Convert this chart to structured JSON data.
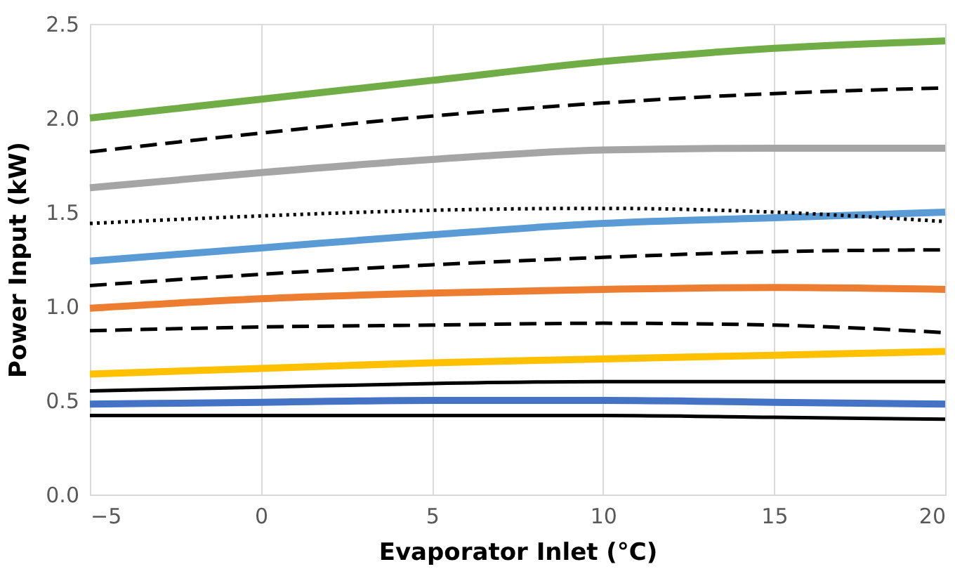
{
  "chart_data": {
    "type": "line",
    "xlabel": "Evaporator Inlet (°C)",
    "ylabel": "Power Input (kW)",
    "x": [
      -5,
      0,
      5,
      10,
      15,
      20
    ],
    "xlim": [
      -5,
      20
    ],
    "xticks": [
      -5,
      0,
      5,
      10,
      15,
      20
    ],
    "ylim": [
      0,
      2.5
    ],
    "yticks": [
      {
        "value": 0,
        "label": "0.0"
      },
      {
        "value": 0.5,
        "label": "0.5"
      },
      {
        "value": 1,
        "label": "1.0"
      },
      {
        "value": 1.5,
        "label": "1.5"
      },
      {
        "value": 2,
        "label": "2.0"
      },
      {
        "value": 2.5,
        "label": "2.5"
      }
    ],
    "grid": "x",
    "legend": false,
    "marker": "none",
    "series": [
      {
        "color": "#70ad47",
        "line_style": "solid",
        "values": [
          2.0,
          2.1,
          2.2,
          2.3,
          2.37,
          2.41
        ]
      },
      {
        "color": "#000000",
        "line_style": "dashed",
        "values": [
          1.82,
          1.92,
          2.01,
          2.08,
          2.13,
          2.16
        ]
      },
      {
        "color": "#a5a5a5",
        "line_style": "solid",
        "values": [
          1.63,
          1.71,
          1.78,
          1.83,
          1.84,
          1.84
        ]
      },
      {
        "color": "#000000",
        "line_style": "dotted",
        "values": [
          1.44,
          1.48,
          1.51,
          1.52,
          1.5,
          1.45
        ]
      },
      {
        "color": "#5b9bd5",
        "line_style": "solid",
        "values": [
          1.24,
          1.31,
          1.38,
          1.44,
          1.47,
          1.5
        ]
      },
      {
        "color": "#000000",
        "line_style": "dashed",
        "values": [
          1.11,
          1.17,
          1.22,
          1.26,
          1.29,
          1.3
        ]
      },
      {
        "color": "#ed7d31",
        "line_style": "solid",
        "values": [
          0.99,
          1.04,
          1.07,
          1.09,
          1.1,
          1.09
        ]
      },
      {
        "color": "#000000",
        "line_style": "dashed",
        "values": [
          0.87,
          0.89,
          0.9,
          0.91,
          0.9,
          0.86
        ]
      },
      {
        "color": "#ffc000",
        "line_style": "solid",
        "values": [
          0.64,
          0.67,
          0.7,
          0.72,
          0.74,
          0.76
        ]
      },
      {
        "color": "#000000",
        "line_style": "solid",
        "values": [
          0.55,
          0.57,
          0.59,
          0.6,
          0.6,
          0.6
        ]
      },
      {
        "color": "#4472c4",
        "line_style": "solid",
        "values": [
          0.48,
          0.49,
          0.5,
          0.5,
          0.49,
          0.48
        ]
      },
      {
        "color": "#000000",
        "line_style": "solid",
        "values": [
          0.42,
          0.42,
          0.42,
          0.42,
          0.41,
          0.4
        ]
      }
    ]
  }
}
